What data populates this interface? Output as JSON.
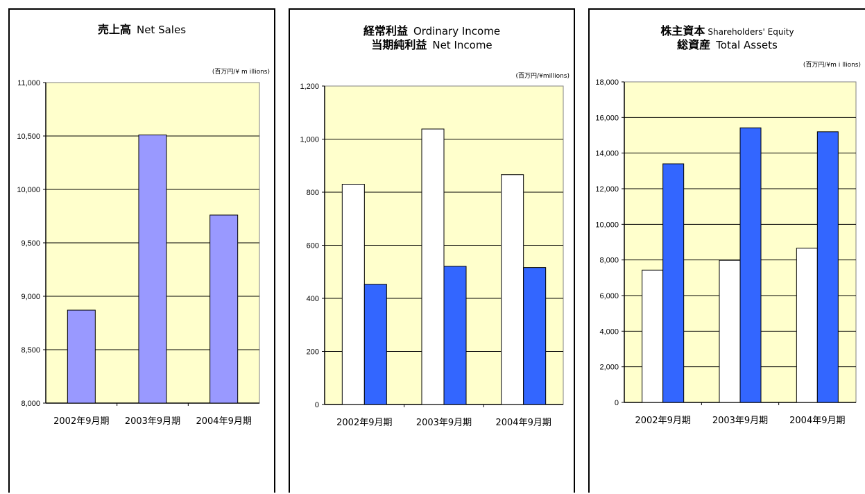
{
  "chart_data": [
    {
      "type": "bar",
      "title_jp": "売上高",
      "title_en": "Net Sales",
      "unit": "(百万円/¥ m illions)",
      "categories": [
        "2002年9月期",
        "2003年9月期",
        "2004年9月期"
      ],
      "series": [
        {
          "values": [
            8870,
            10510,
            9760
          ],
          "color": "#9999ff"
        }
      ],
      "ylim": [
        8000,
        11000
      ],
      "yticks": [
        "8,000",
        "8,500",
        "9,000",
        "9,500",
        "10,000",
        "10,500",
        "11,000"
      ],
      "grid": true,
      "plot_background": "#ffffcc"
    },
    {
      "type": "bar",
      "title_jp": "経常利益",
      "title_en": "Ordinary Income",
      "title2_jp": "当期純利益",
      "title2_en": "Net Income",
      "unit": "(百万円/¥millions)",
      "categories": [
        "2002年9月期",
        "2003年9月期",
        "2004年9月期"
      ],
      "series": [
        {
          "values": [
            830,
            1038,
            866
          ],
          "color": "#ffffff"
        },
        {
          "values": [
            453,
            521,
            516
          ],
          "color": "#3366ff"
        }
      ],
      "ylim": [
        0,
        1200
      ],
      "yticks": [
        "0",
        "200",
        "400",
        "600",
        "800",
        "1,000",
        "1,200"
      ],
      "grid": true,
      "plot_background": "#ffffcc"
    },
    {
      "type": "bar",
      "title_jp": "株主資本",
      "title_en": "Shareholders' Equity",
      "title2_jp": "総資産",
      "title2_en": "Total Assets",
      "unit": "(百万円/¥m i llions)",
      "categories": [
        "2002年9月期",
        "2003年9月期",
        "2004年9月期"
      ],
      "series": [
        {
          "values": [
            7430,
            7980,
            8660
          ],
          "color": "#ffffff"
        },
        {
          "values": [
            13400,
            15420,
            15200
          ],
          "color": "#3366ff"
        }
      ],
      "ylim": [
        0,
        18000
      ],
      "yticks": [
        "0",
        "2,000",
        "4,000",
        "6,000",
        "8,000",
        "10,000",
        "12,000",
        "14,000",
        "16,000",
        "18,000"
      ],
      "grid": true,
      "plot_background": "#ffffcc"
    }
  ]
}
